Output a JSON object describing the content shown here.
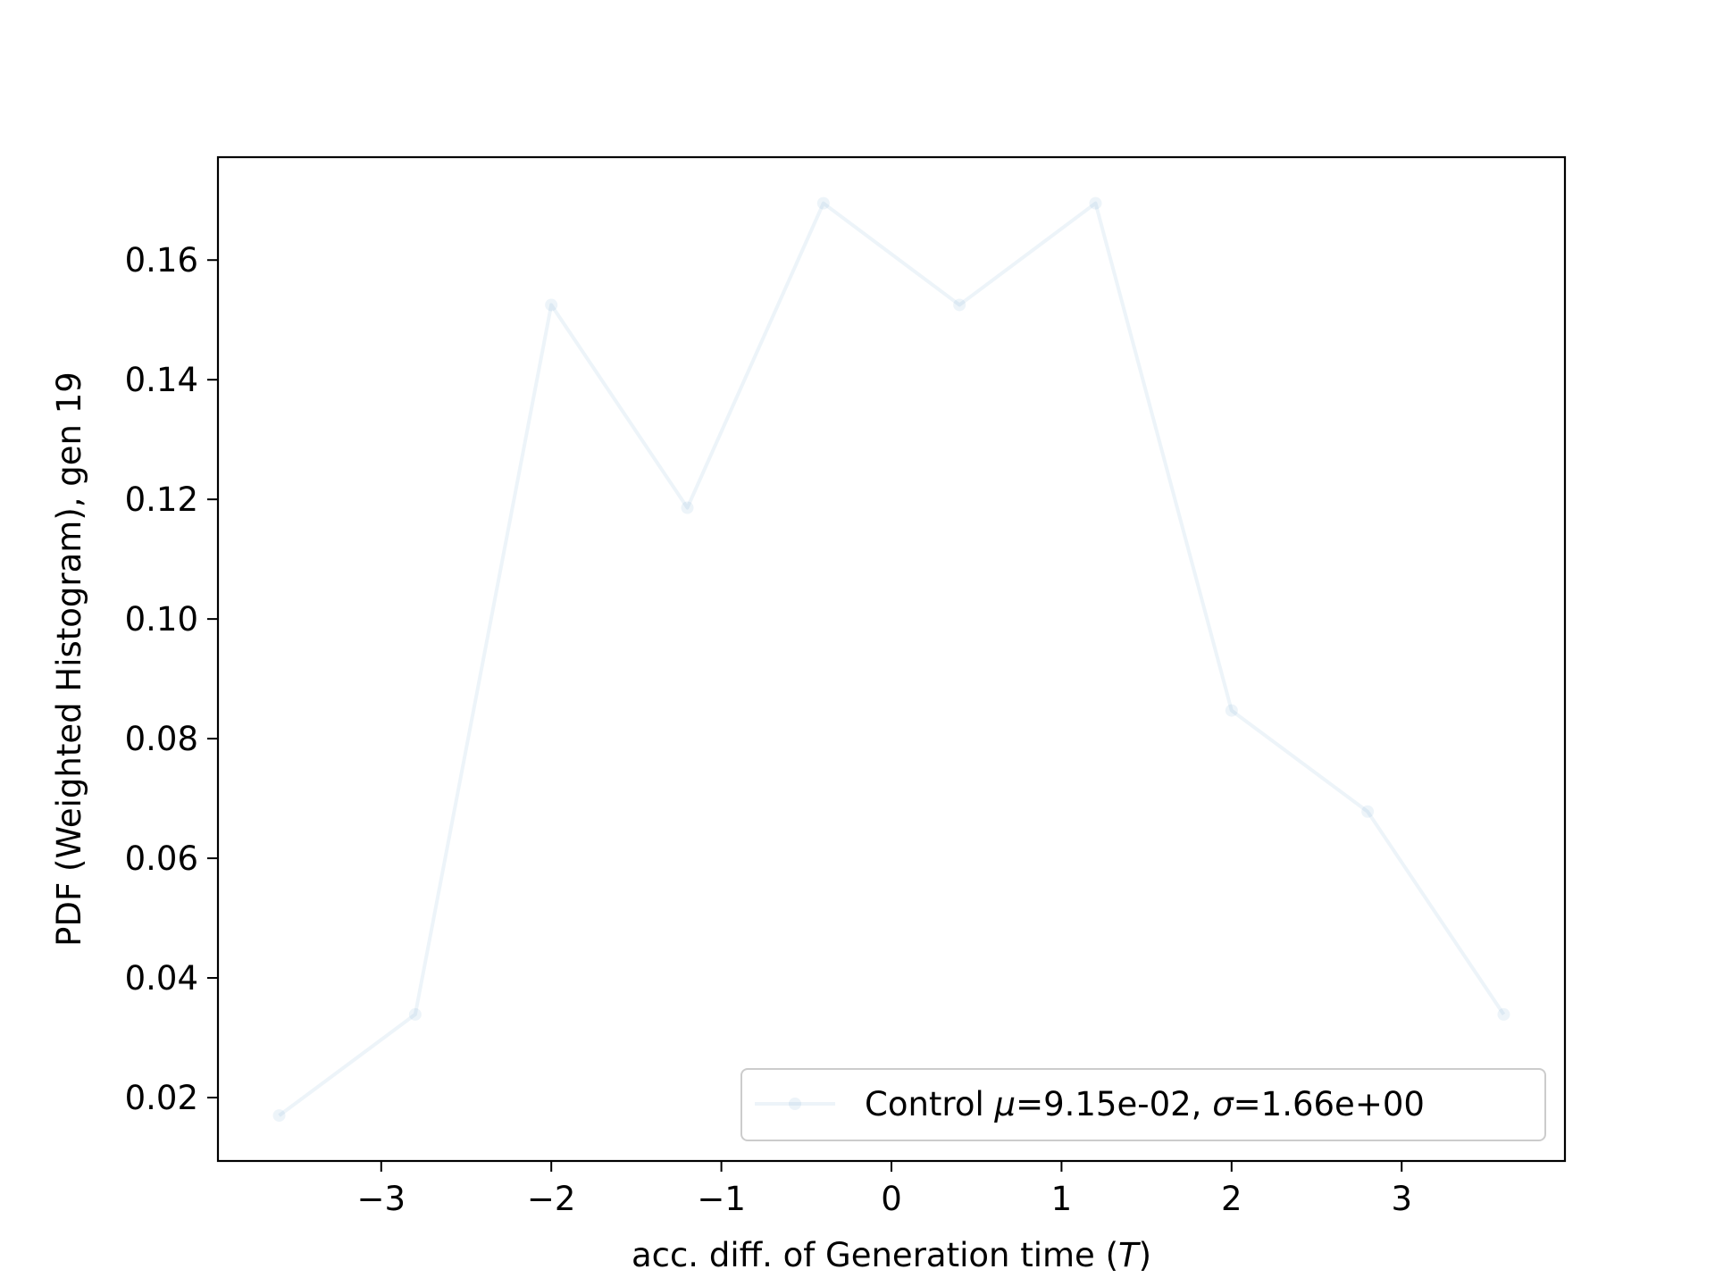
{
  "chart_data": {
    "type": "line",
    "title": "",
    "xlabel_prefix": "acc. diff. of Generation time (",
    "xlabel_var": "T",
    "xlabel_suffix": ")",
    "ylabel": "PDF (Weighted Histogram), gen 19",
    "xlim": [
      -3.96,
      3.96
    ],
    "ylim": [
      0.0094,
      0.1772
    ],
    "xticks": [
      -3,
      -2,
      -1,
      0,
      1,
      2,
      3
    ],
    "xtick_labels": [
      "−3",
      "−2",
      "−1",
      "0",
      "1",
      "2",
      "3"
    ],
    "yticks": [
      0.02,
      0.04,
      0.06,
      0.08,
      0.1,
      0.12,
      0.14,
      0.16
    ],
    "ytick_labels": [
      "0.02",
      "0.04",
      "0.06",
      "0.08",
      "0.10",
      "0.12",
      "0.14",
      "0.16"
    ],
    "grid": false,
    "legend_position": "lower-right",
    "series": [
      {
        "name": "Control",
        "color": "#1f77b4",
        "opacity": 0.08,
        "x": [
          -3.6,
          -2.8,
          -2.0,
          -1.2,
          -0.4,
          0.4,
          1.2,
          2.0,
          2.8,
          3.6
        ],
        "y": [
          0.017,
          0.0339,
          0.1525,
          0.1186,
          0.1695,
          0.1525,
          0.1695,
          0.0847,
          0.0678,
          0.0339
        ]
      }
    ],
    "legend": {
      "series_name": "Control",
      "mu_symbol": "μ",
      "sigma_symbol": "σ",
      "equals": "=",
      "mu_value": "9.15e-02",
      "separator": ",",
      "sigma_value": "1.66e+00"
    }
  }
}
